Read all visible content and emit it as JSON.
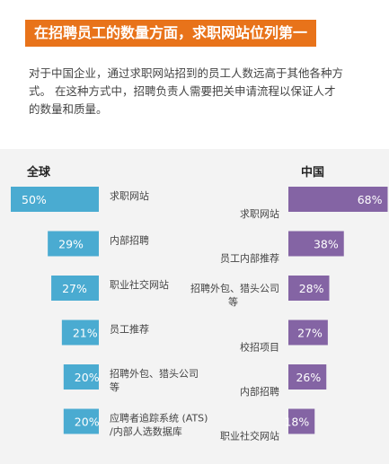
{
  "title": "在招聘员工的数量方面，求职网站位列第一",
  "intro_line1": "对于中国企业，通过求职网站招到的员工人数远高于其他各种方",
  "intro_line2": "式。 在这种方式中，招聘负责人需要把关申请流程以保证人才",
  "intro_line3": "的数量和质量。",
  "colors": {
    "title_bg": "#e8731a",
    "global": "#4aabd1",
    "china": "#8464a4",
    "panel": "#f3f3f3"
  },
  "chart_data": [
    {
      "type": "bar",
      "orientation": "horizontal",
      "title": "全球",
      "categories": [
        "求职网站",
        "内部招聘",
        "职业社交网站",
        "员工推荐",
        "招聘外包、猎头公司等",
        "应聘者追踪系统 (ATS) /内部人选数据库"
      ],
      "category_lines": [
        [
          "求职网站"
        ],
        [
          "内部招聘"
        ],
        [
          "职业社交网站"
        ],
        [
          "员工推荐"
        ],
        [
          "招聘外包、猎头公司",
          "等"
        ],
        [
          "应聘者追踪系统 (ATS)",
          "/内部人选数据库"
        ]
      ],
      "values": [
        50,
        29,
        27,
        21,
        20,
        20
      ],
      "value_labels": [
        "50%",
        "29%",
        "27%",
        "21%",
        "20%",
        "20%"
      ],
      "unit": "%"
    },
    {
      "type": "bar",
      "orientation": "horizontal",
      "title": "中国",
      "categories": [
        "求职网站",
        "员工内部推荐",
        "招聘外包、猎头公司等",
        "校招项目",
        "内部招聘",
        "职业社交网站"
      ],
      "category_lines": [
        [
          "求职网站"
        ],
        [
          "员工内部推荐"
        ],
        [
          "招聘外包、猎头公司",
          "等"
        ],
        [
          "校招项目"
        ],
        [
          "内部招聘"
        ],
        [
          "职业社交网站"
        ]
      ],
      "values": [
        68,
        38,
        28,
        27,
        26,
        18
      ],
      "value_labels": [
        "68%",
        "38%",
        "28%",
        "27%",
        "26%",
        "18%"
      ],
      "unit": "%"
    }
  ]
}
